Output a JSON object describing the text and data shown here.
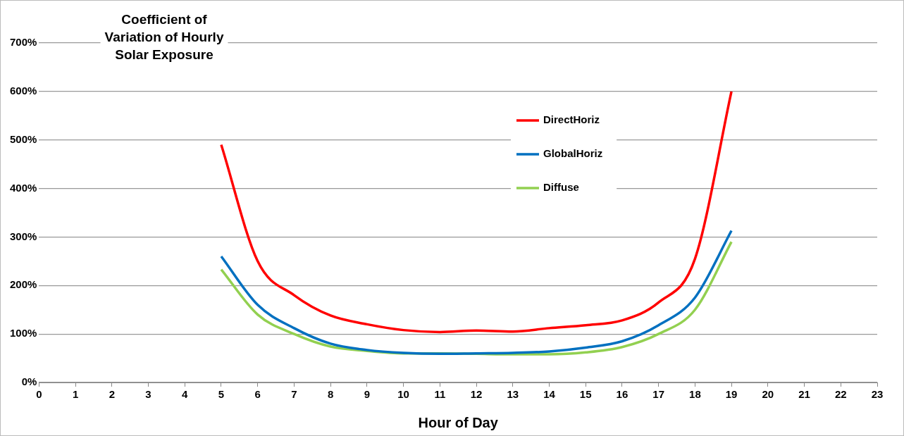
{
  "chart_data": {
    "type": "line",
    "title": "Coefficient of Variation of Hourly Solar Exposure",
    "xlabel": "Hour of Day",
    "x": [
      5,
      6,
      7,
      8,
      9,
      10,
      11,
      12,
      13,
      14,
      15,
      16,
      17,
      18,
      19
    ],
    "xlim": [
      0,
      23
    ],
    "xticks": [
      0,
      1,
      2,
      3,
      4,
      5,
      6,
      7,
      8,
      9,
      10,
      11,
      12,
      13,
      14,
      15,
      16,
      17,
      18,
      19,
      20,
      21,
      22,
      23
    ],
    "ylim": [
      0,
      700
    ],
    "yticks": [
      {
        "value": 0,
        "label": "0%"
      },
      {
        "value": 100,
        "label": "100%"
      },
      {
        "value": 200,
        "label": "200%"
      },
      {
        "value": 300,
        "label": "300%"
      },
      {
        "value": 400,
        "label": "400%"
      },
      {
        "value": 500,
        "label": "500%"
      },
      {
        "value": 600,
        "label": "600%"
      },
      {
        "value": 700,
        "label": "700%"
      }
    ],
    "grid": "y",
    "legend": "top right",
    "marker": "none",
    "line_style": "solid",
    "series": [
      {
        "name": "DirectHoriz",
        "color": "#ff0000",
        "values": [
          490,
          250,
          180,
          138,
          120,
          108,
          104,
          107,
          105,
          112,
          118,
          128,
          165,
          255,
          600
        ]
      },
      {
        "name": "GlobalHoriz",
        "color": "#0070c0",
        "values": [
          260,
          160,
          112,
          80,
          67,
          61,
          59,
          60,
          61,
          64,
          72,
          85,
          118,
          175,
          313
        ]
      },
      {
        "name": "Diffuse",
        "color": "#92d050",
        "values": [
          233,
          140,
          100,
          74,
          65,
          60,
          60,
          59,
          58,
          58,
          62,
          73,
          100,
          150,
          290
        ]
      }
    ]
  }
}
